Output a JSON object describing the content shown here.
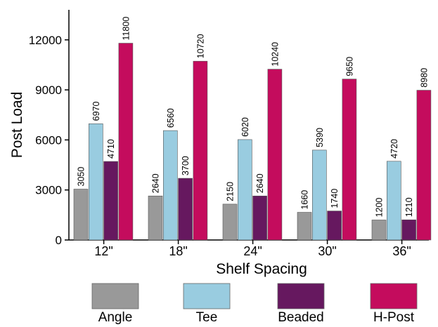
{
  "chart_data": {
    "type": "bar",
    "title": "",
    "xlabel": "Shelf Spacing",
    "ylabel": "Post Load",
    "categories": [
      "12\"",
      "18\"",
      "24\"",
      "30\"",
      "36\""
    ],
    "yticks": [
      0,
      3000,
      6000,
      9000,
      12000
    ],
    "ylim": [
      0,
      13800
    ],
    "grid": false,
    "legend_position": "bottom",
    "series": [
      {
        "name": "Angle",
        "color": "#999999",
        "values": [
          3050,
          2640,
          2150,
          1660,
          1200
        ]
      },
      {
        "name": "Tee",
        "color": "#99CCE0",
        "values": [
          6970,
          6560,
          6020,
          5390,
          4720
        ]
      },
      {
        "name": "Beaded",
        "color": "#66185F",
        "values": [
          4710,
          3700,
          2640,
          1740,
          1210
        ]
      },
      {
        "name": "H-Post",
        "color": "#C40C5D",
        "values": [
          11800,
          10720,
          10240,
          9650,
          8980
        ]
      }
    ]
  }
}
